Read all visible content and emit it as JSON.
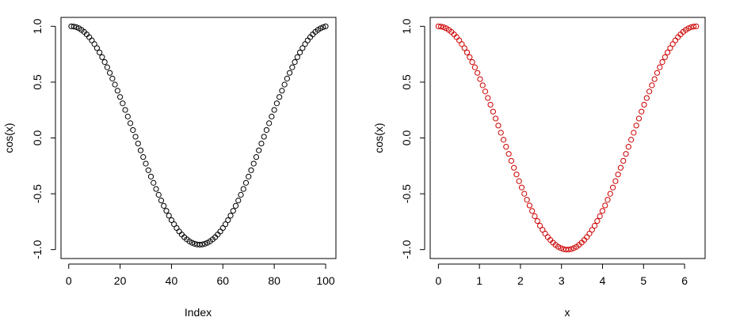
{
  "chart_data": [
    {
      "type": "scatter",
      "title": "",
      "xlabel": "Index",
      "ylabel": "cos(x)",
      "xlim": [
        -3,
        104
      ],
      "ylim": [
        -1.08,
        1.08
      ],
      "x_ticks": [
        0,
        20,
        40,
        60,
        80,
        100
      ],
      "x_tick_labels": [
        "0",
        "20",
        "40",
        "60",
        "80",
        "100"
      ],
      "y_ticks": [
        -1.0,
        -0.5,
        0.0,
        0.5,
        1.0
      ],
      "y_tick_labels": [
        "-1.0",
        "-0.5",
        "0.0",
        "0.5",
        "1.0"
      ],
      "grid": false,
      "marker": "open-circle",
      "color": "#000000",
      "series": [
        {
          "x": [
            1,
            2,
            3,
            4,
            5,
            6,
            7,
            8,
            9,
            10,
            11,
            12,
            13,
            14,
            15,
            16,
            17,
            18,
            19,
            20,
            21,
            22,
            23,
            24,
            25,
            26,
            27,
            28,
            29,
            30,
            31,
            32,
            33,
            34,
            35,
            36,
            37,
            38,
            39,
            40,
            41,
            42,
            43,
            44,
            45,
            46,
            47,
            48,
            49,
            50,
            51,
            52,
            53,
            54,
            55,
            56,
            57,
            58,
            59,
            60,
            61,
            62,
            63,
            64,
            65,
            66,
            67,
            68,
            69,
            70,
            71,
            72,
            73,
            74,
            75,
            76,
            77,
            78,
            79,
            80,
            81,
            82,
            83,
            84,
            85,
            86,
            87,
            88,
            89,
            90,
            91,
            92,
            93,
            94,
            95,
            96,
            97,
            98,
            99,
            100
          ],
          "y": [
            1.0,
            0.998,
            0.992,
            0.982,
            0.968,
            0.95,
            0.928,
            0.903,
            0.874,
            0.841,
            0.805,
            0.766,
            0.724,
            0.68,
            0.633,
            0.583,
            0.532,
            0.478,
            0.423,
            0.367,
            0.31,
            0.251,
            0.192,
            0.132,
            0.071,
            0.011,
            -0.05,
            -0.111,
            -0.171,
            -0.23,
            -0.289,
            -0.346,
            -0.402,
            -0.457,
            -0.509,
            -0.56,
            -0.608,
            -0.653,
            -0.696,
            -0.736,
            -0.773,
            -0.807,
            -0.838,
            -0.865,
            -0.889,
            -0.909,
            -0.926,
            -0.939,
            -0.948,
            -0.954,
            -0.956,
            -0.954,
            -0.948,
            -0.939,
            -0.926,
            -0.909,
            -0.889,
            -0.865,
            -0.838,
            -0.807,
            -0.773,
            -0.736,
            -0.696,
            -0.653,
            -0.608,
            -0.56,
            -0.509,
            -0.457,
            -0.402,
            -0.346,
            -0.289,
            -0.23,
            -0.171,
            -0.111,
            -0.05,
            0.011,
            0.071,
            0.132,
            0.192,
            0.251,
            0.31,
            0.367,
            0.423,
            0.478,
            0.532,
            0.583,
            0.633,
            0.68,
            0.724,
            0.766,
            0.805,
            0.841,
            0.874,
            0.903,
            0.928,
            0.95,
            0.968,
            0.982,
            0.992,
            1.0
          ]
        }
      ]
    },
    {
      "type": "scatter",
      "title": "",
      "xlabel": "x",
      "ylabel": "cos(x)",
      "xlim": [
        -0.2,
        6.5
      ],
      "ylim": [
        -1.08,
        1.08
      ],
      "x_ticks": [
        0,
        1,
        2,
        3,
        4,
        5,
        6
      ],
      "x_tick_labels": [
        "0",
        "1",
        "2",
        "3",
        "4",
        "5",
        "6"
      ],
      "y_ticks": [
        -1.0,
        -0.5,
        0.0,
        0.5,
        1.0
      ],
      "y_tick_labels": [
        "-1.0",
        "-0.5",
        "0.0",
        "0.5",
        "1.0"
      ],
      "grid": false,
      "marker": "open-circle",
      "color": "#cc0000",
      "series": [
        {
          "x": [
            0.0,
            0.063,
            0.127,
            0.19,
            0.254,
            0.317,
            0.381,
            0.444,
            0.508,
            0.571,
            0.635,
            0.698,
            0.762,
            0.825,
            0.889,
            0.952,
            1.016,
            1.079,
            1.142,
            1.206,
            1.269,
            1.333,
            1.396,
            1.46,
            1.523,
            1.587,
            1.65,
            1.714,
            1.777,
            1.841,
            1.904,
            1.967,
            2.031,
            2.094,
            2.158,
            2.221,
            2.285,
            2.348,
            2.412,
            2.475,
            2.539,
            2.602,
            2.666,
            2.729,
            2.793,
            2.856,
            2.919,
            2.983,
            3.046,
            3.11,
            3.173,
            3.237,
            3.3,
            3.364,
            3.427,
            3.491,
            3.554,
            3.618,
            3.681,
            3.745,
            3.808,
            3.871,
            3.935,
            3.998,
            4.062,
            4.125,
            4.189,
            4.252,
            4.316,
            4.379,
            4.443,
            4.506,
            4.57,
            4.633,
            4.697,
            4.76,
            4.823,
            4.887,
            4.95,
            5.014,
            5.077,
            5.141,
            5.204,
            5.268,
            5.331,
            5.395,
            5.458,
            5.522,
            5.585,
            5.649,
            5.712,
            5.775,
            5.839,
            5.902,
            5.966,
            6.029,
            6.093,
            6.156,
            6.22,
            6.283
          ],
          "y": [
            1.0,
            0.998,
            0.992,
            0.982,
            0.968,
            0.95,
            0.928,
            0.903,
            0.874,
            0.841,
            0.805,
            0.766,
            0.724,
            0.68,
            0.633,
            0.583,
            0.527,
            0.472,
            0.416,
            0.358,
            0.298,
            0.236,
            0.174,
            0.111,
            0.047,
            -0.016,
            -0.079,
            -0.143,
            -0.205,
            -0.267,
            -0.327,
            -0.387,
            -0.444,
            -0.5,
            -0.554,
            -0.605,
            -0.654,
            -0.701,
            -0.744,
            -0.786,
            -0.823,
            -0.857,
            -0.888,
            -0.914,
            -0.938,
            -0.958,
            -0.975,
            -0.987,
            -0.996,
            -1.0,
            -1.0,
            -0.996,
            -0.987,
            -0.975,
            -0.958,
            -0.938,
            -0.914,
            -0.888,
            -0.857,
            -0.823,
            -0.786,
            -0.744,
            -0.701,
            -0.654,
            -0.605,
            -0.554,
            -0.5,
            -0.444,
            -0.387,
            -0.327,
            -0.267,
            -0.205,
            -0.143,
            -0.079,
            -0.016,
            0.047,
            0.111,
            0.174,
            0.236,
            0.298,
            0.358,
            0.416,
            0.472,
            0.527,
            0.583,
            0.633,
            0.68,
            0.724,
            0.766,
            0.805,
            0.841,
            0.874,
            0.903,
            0.928,
            0.95,
            0.968,
            0.982,
            0.992,
            0.998,
            1.0
          ]
        }
      ]
    }
  ]
}
